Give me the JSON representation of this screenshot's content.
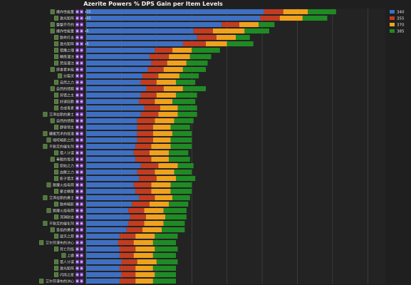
{
  "chart_data": {
    "type": "bar",
    "orientation": "horizontal",
    "stacked": true,
    "title": "Azerite Powers % DPS Gain per Item Levels",
    "xlabel": "",
    "ylabel": "",
    "grid": true,
    "legend_position": "top-right",
    "series": [
      {
        "name": "340",
        "color": "#3f6fc2"
      },
      {
        "name": "355",
        "color": "#c33c20"
      },
      {
        "name": "370",
        "color": "#f0a21c"
      },
      {
        "name": "385",
        "color": "#1f8b24"
      }
    ],
    "rows": [
      {
        "label": "爆炸性能量",
        "tag": "x15",
        "values": [
          5.05,
          0.55,
          0.7,
          0.8
        ]
      },
      {
        "label": "激光矩阵",
        "tag": "x15",
        "values": [
          4.95,
          0.55,
          0.65,
          0.7
        ]
      },
      {
        "label": "整整齐齐的",
        "tag": "",
        "values": [
          3.85,
          0.5,
          0.55,
          0.45
        ]
      },
      {
        "label": "爆炸性能量",
        "tag": "x5",
        "values": [
          3.05,
          0.55,
          0.9,
          0.7
        ]
      },
      {
        "label": "致命打击",
        "tag": "",
        "values": [
          3.15,
          0.55,
          0.55,
          0.4
        ]
      },
      {
        "label": "激光矩阵",
        "tag": "x5",
        "values": [
          2.75,
          0.65,
          0.6,
          0.75
        ]
      },
      {
        "label": "猎鹰之魂",
        "tag": "",
        "values": [
          1.95,
          0.5,
          0.55,
          0.8
        ]
      },
      {
        "label": "精炼灌注",
        "tag": "",
        "values": [
          1.8,
          0.55,
          0.6,
          0.6
        ]
      },
      {
        "label": "焚烧灌注",
        "tag": "",
        "values": [
          1.85,
          0.45,
          0.55,
          0.6
        ]
      },
      {
        "label": "掠食者本能",
        "tag": "",
        "values": [
          1.75,
          0.45,
          0.55,
          0.65
        ]
      },
      {
        "label": "分裂灵",
        "tag": "",
        "values": [
          1.6,
          0.45,
          0.6,
          0.55
        ]
      },
      {
        "label": "自然之力",
        "tag": "",
        "values": [
          1.55,
          0.45,
          0.55,
          0.55
        ]
      },
      {
        "label": "自然的馈赠",
        "tag": "",
        "values": [
          1.7,
          0.5,
          0.55,
          0.65
        ]
      },
      {
        "label": "狩猎之主",
        "tag": "",
        "values": [
          1.55,
          0.45,
          0.55,
          0.6
        ]
      },
      {
        "label": "好運狂歡",
        "tag": "",
        "values": [
          1.5,
          0.45,
          0.5,
          0.65
        ]
      },
      {
        "label": "合成毒素",
        "tag": "",
        "values": [
          1.65,
          0.45,
          0.5,
          0.55
        ]
      },
      {
        "label": "艾泽拉斯的勇士",
        "tag": "",
        "values": [
          1.55,
          0.5,
          0.55,
          0.55
        ]
      },
      {
        "label": "自然的馈赠",
        "tag": "",
        "values": [
          1.45,
          0.5,
          0.55,
          0.55
        ]
      },
      {
        "label": "野兽领主",
        "tag": "",
        "values": [
          1.45,
          0.45,
          0.5,
          0.55
        ]
      },
      {
        "label": "糖蜜咒术的低语",
        "tag": "",
        "values": [
          1.45,
          0.45,
          0.55,
          0.55
        ]
      },
      {
        "label": "啮咬暗影之伤",
        "tag": "",
        "values": [
          1.45,
          0.45,
          0.5,
          0.6
        ]
      },
      {
        "label": "不稳定的催化剂",
        "tag": "",
        "values": [
          1.4,
          0.45,
          0.55,
          0.6
        ]
      },
      {
        "label": "猎人计谋",
        "tag": "",
        "values": [
          1.35,
          0.45,
          0.55,
          0.55
        ]
      },
      {
        "label": "奉献的毒液",
        "tag": "",
        "values": [
          1.4,
          0.45,
          0.5,
          0.6
        ]
      },
      {
        "label": "原始之力",
        "tag": "",
        "values": [
          1.55,
          0.5,
          0.55,
          0.45
        ]
      },
      {
        "label": "血獸之力",
        "tag": "",
        "values": [
          1.45,
          0.5,
          0.55,
          0.5
        ]
      },
      {
        "label": "影子猎手",
        "tag": "",
        "values": [
          1.5,
          0.5,
          0.55,
          0.55
        ]
      },
      {
        "label": "跳躍火焰电荷",
        "tag": "",
        "values": [
          1.35,
          0.5,
          0.55,
          0.6
        ]
      },
      {
        "label": "聚合精華",
        "tag": "",
        "values": [
          1.4,
          0.45,
          0.55,
          0.6
        ]
      },
      {
        "label": "艾泽拉斯的勇士",
        "tag": "",
        "values": [
          1.5,
          0.45,
          0.5,
          0.5
        ]
      },
      {
        "label": "致命暗影",
        "tag": "",
        "values": [
          1.3,
          0.5,
          0.55,
          0.55
        ]
      },
      {
        "label": "跳躍火焰电荷",
        "tag": "",
        "values": [
          1.2,
          0.45,
          0.55,
          0.65
        ]
      },
      {
        "label": "深渊射击",
        "tag": "",
        "values": [
          1.25,
          0.45,
          0.55,
          0.6
        ]
      },
      {
        "label": "不稳定的催化剂",
        "tag": "",
        "values": [
          1.2,
          0.45,
          0.55,
          0.6
        ]
      },
      {
        "label": "圣焰的勇者",
        "tag": "",
        "values": [
          1.15,
          0.45,
          0.55,
          0.65
        ]
      },
      {
        "label": "毁灭之怒",
        "tag": "",
        "values": [
          0.95,
          0.45,
          0.55,
          0.65
        ]
      },
      {
        "label": "艾尔芬瀑布的决心",
        "tag": "",
        "values": [
          0.9,
          0.45,
          0.55,
          0.65
        ]
      },
      {
        "label": "死亡烈焰",
        "tag": "",
        "values": [
          0.95,
          0.45,
          0.55,
          0.65
        ]
      },
      {
        "label": "上旗",
        "tag": "",
        "values": [
          0.95,
          0.4,
          0.55,
          0.65
        ]
      },
      {
        "label": "猎人计谋",
        "tag": "",
        "values": [
          1.0,
          0.45,
          0.55,
          0.6
        ]
      },
      {
        "label": "激光矩阵",
        "tag": "",
        "values": [
          0.95,
          0.45,
          0.5,
          0.65
        ]
      },
      {
        "label": "闪烁之星",
        "tag": "",
        "values": [
          1.0,
          0.4,
          0.55,
          0.6
        ]
      },
      {
        "label": "艾尔芬瀑布的决心",
        "tag": "",
        "values": [
          0.95,
          0.45,
          0.5,
          0.65
        ]
      }
    ]
  }
}
